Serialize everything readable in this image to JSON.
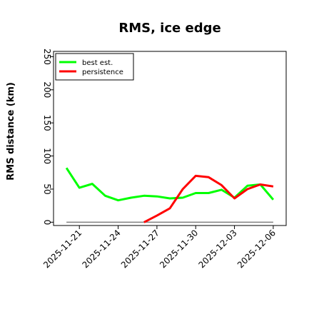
{
  "chart_data": {
    "type": "line",
    "title": "RMS, ice edge",
    "xlabel": "",
    "ylabel": "RMS distance (km)",
    "ylim": [
      -5,
      258
    ],
    "y_ticks": [
      0,
      50,
      100,
      150,
      200,
      250
    ],
    "xlim": [
      "2025-11-19",
      "2025-12-07"
    ],
    "x_ticks": [
      "2025-11-21",
      "2025-11-24",
      "2025-11-27",
      "2025-11-30",
      "2025-12-03",
      "2025-12-06"
    ],
    "grid": false,
    "legend": {
      "position": "top-left"
    },
    "series": [
      {
        "name": "best est.",
        "color": "#00ff00",
        "points": [
          [
            "2025-11-20",
            82
          ],
          [
            "2025-11-21",
            52
          ],
          [
            "2025-11-22",
            58
          ],
          [
            "2025-11-23",
            40
          ],
          [
            "2025-11-24",
            33
          ],
          [
            "2025-11-25",
            37
          ],
          [
            "2025-11-26",
            40
          ],
          [
            "2025-11-27",
            39
          ],
          [
            "2025-11-28",
            36
          ],
          [
            "2025-11-29",
            37
          ],
          [
            "2025-11-30",
            44
          ],
          [
            "2025-12-01",
            44
          ],
          [
            "2025-12-02",
            49
          ],
          [
            "2025-12-03",
            37
          ],
          [
            "2025-12-04",
            55
          ],
          [
            "2025-12-05",
            57
          ],
          [
            "2025-12-06",
            34
          ]
        ]
      },
      {
        "name": "persistence",
        "color": "#ff0000",
        "points": [
          [
            "2025-11-26",
            0
          ],
          [
            "2025-11-27",
            10
          ],
          [
            "2025-11-28",
            21
          ],
          [
            "2025-11-29",
            50
          ],
          [
            "2025-11-30",
            70
          ],
          [
            "2025-12-01",
            68
          ],
          [
            "2025-12-02",
            56
          ],
          [
            "2025-12-03",
            36
          ],
          [
            "2025-12-04",
            50
          ],
          [
            "2025-12-05",
            57
          ],
          [
            "2025-12-06",
            54
          ]
        ]
      }
    ],
    "reference_line": {
      "y": 0,
      "color": "#808080",
      "x_range": [
        "2025-11-20",
        "2025-12-06"
      ]
    }
  }
}
